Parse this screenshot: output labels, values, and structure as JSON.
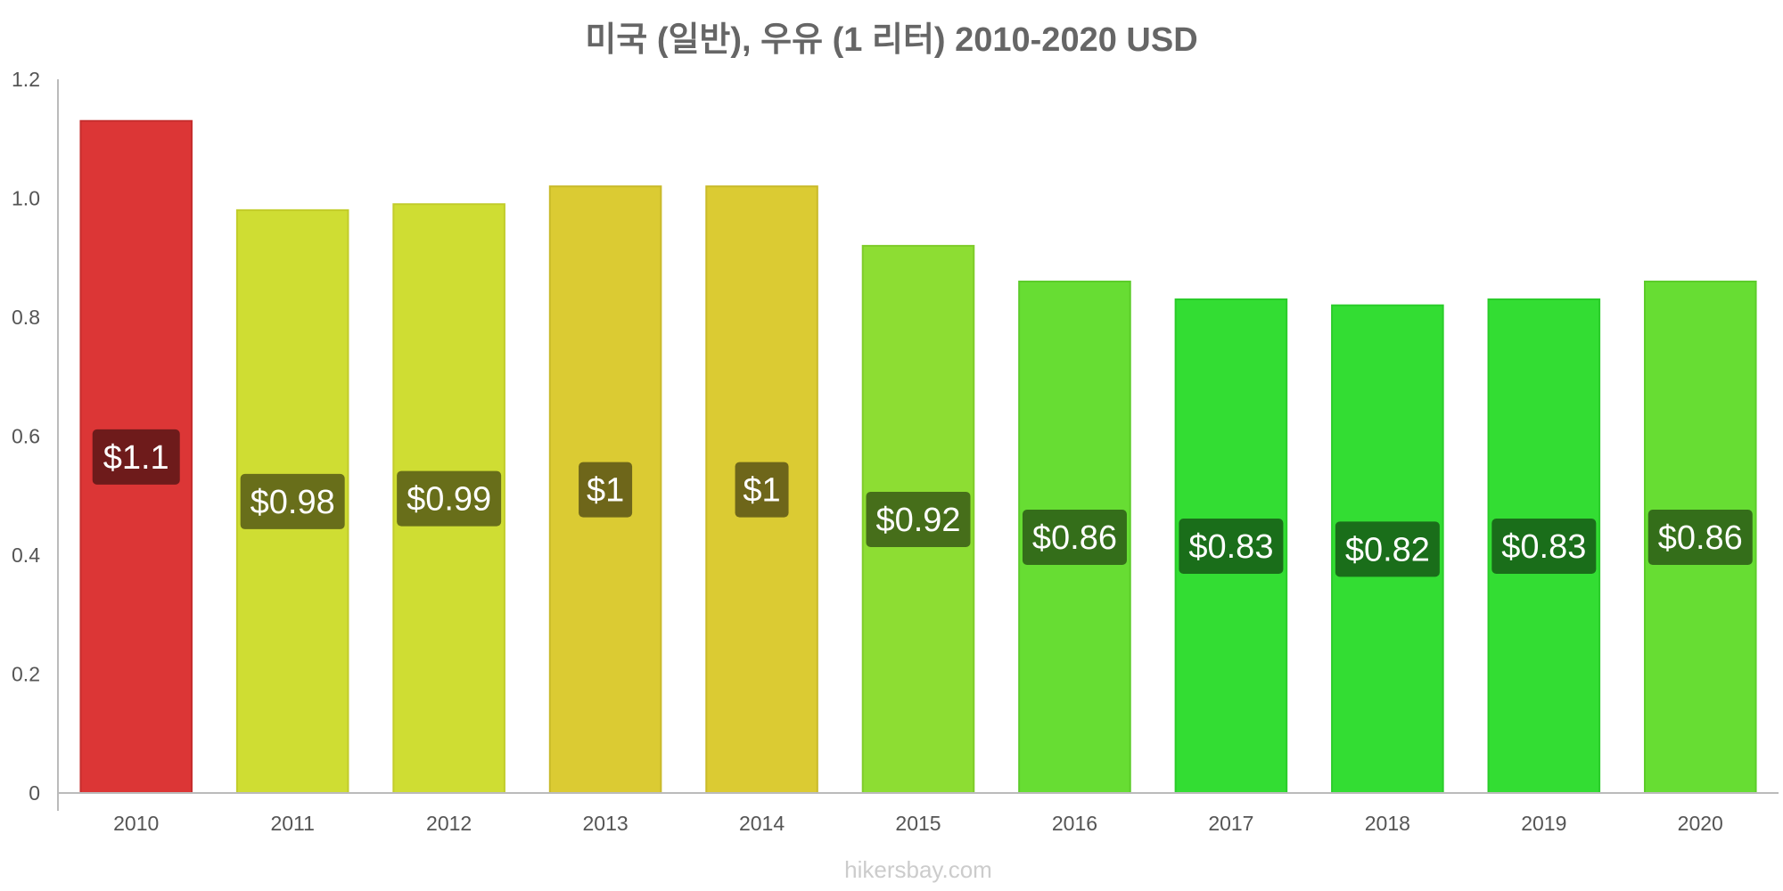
{
  "chart_data": {
    "type": "bar",
    "title": "미국 (일반), 우유 (1 리터) 2010-2020 USD",
    "xlabel": "",
    "ylabel": "",
    "ylim": [
      0,
      1.2
    ],
    "yticks": [
      "0",
      "0.2",
      "0.4",
      "0.6",
      "0.8",
      "1.0",
      "1.2"
    ],
    "ytick_values": [
      0,
      0.2,
      0.4,
      0.6,
      0.8,
      1.0,
      1.2
    ],
    "grid": false,
    "categories": [
      "2010",
      "2011",
      "2012",
      "2013",
      "2014",
      "2015",
      "2016",
      "2017",
      "2018",
      "2019",
      "2020"
    ],
    "values": [
      1.13,
      0.98,
      0.99,
      1.02,
      1.02,
      0.92,
      0.86,
      0.83,
      0.82,
      0.83,
      0.86
    ],
    "data_labels": [
      "$1.1",
      "$0.98",
      "$0.99",
      "$1",
      "$1",
      "$0.92",
      "$0.86",
      "$0.83",
      "$0.82",
      "$0.83",
      "$0.86"
    ],
    "bar_colors": [
      "#dc3636",
      "#cfdd33",
      "#cfdd33",
      "#dbcb33",
      "#dbcb33",
      "#8ddd33",
      "#67dd33",
      "#33dd33",
      "#33dd33",
      "#33dd33",
      "#67dd33"
    ],
    "bar_border_colors": [
      "#c62e2e",
      "#c2cc2a",
      "#c2cc2a",
      "#c9ba2a",
      "#c9ba2a",
      "#7fcc2a",
      "#5ccc2a",
      "#2acc2a",
      "#2acc2a",
      "#2acc2a",
      "#5ccc2a"
    ],
    "label_bg_colors": [
      "#6e1b1b",
      "#686e1a",
      "#686e1a",
      "#6e661a",
      "#6e661a",
      "#466e1a",
      "#346e1a",
      "#1a6e1a",
      "#1a6e1a",
      "#1a6e1a",
      "#346e1a"
    ]
  },
  "watermark": "hikersbay.com",
  "colors": {
    "axis": "#bbbbbb",
    "title": "#666666",
    "tick": "#555555"
  }
}
